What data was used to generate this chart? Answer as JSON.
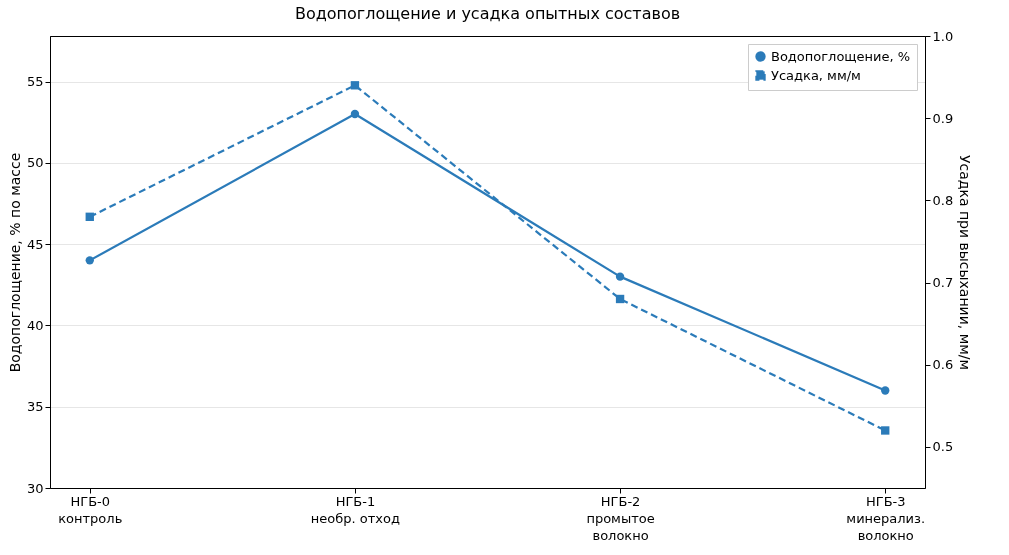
{
  "chart_data": {
    "type": "line",
    "title": "Водопоглощение и усадка опытных составов",
    "categories": [
      "НГБ-0\nконтроль",
      "НГБ-1\nнеобр. отход",
      "НГБ-2\nпромытое\nволокно",
      "НГБ-3\nминерализ.\nволокно"
    ],
    "series": [
      {
        "name": "Водопоглощение, %",
        "color": "#2b7bb9",
        "values": [
          44,
          53,
          43,
          36
        ],
        "marker": "circle",
        "line_style": "solid"
      },
      {
        "name": "Усадка, мм/м",
        "color": "#2b7bb9",
        "values": [
          0.78,
          0.94,
          0.68,
          0.52
        ],
        "marker": "square",
        "line_style": "dashed",
        "axis": "y2"
      }
    ],
    "ylabel": "Водопоглощение, % по массе",
    "y2label": "Усадка при высыхании, мм/м",
    "ylim": [
      30,
      57.8
    ],
    "yticks": [
      30,
      35,
      40,
      45,
      50,
      55
    ],
    "y2lim": [
      0.45,
      1.0
    ],
    "y2ticks": [
      {
        "value": 0.5,
        "label": "0.5"
      },
      {
        "value": 0.6,
        "label": "0.6"
      },
      {
        "value": 0.7,
        "label": "0.7"
      },
      {
        "value": 0.8,
        "label": "0.8"
      },
      {
        "value": 0.9,
        "label": "0.9"
      },
      {
        "value": 1.0,
        "label": "1.0"
      }
    ],
    "grid": "y",
    "legend": "top right"
  }
}
